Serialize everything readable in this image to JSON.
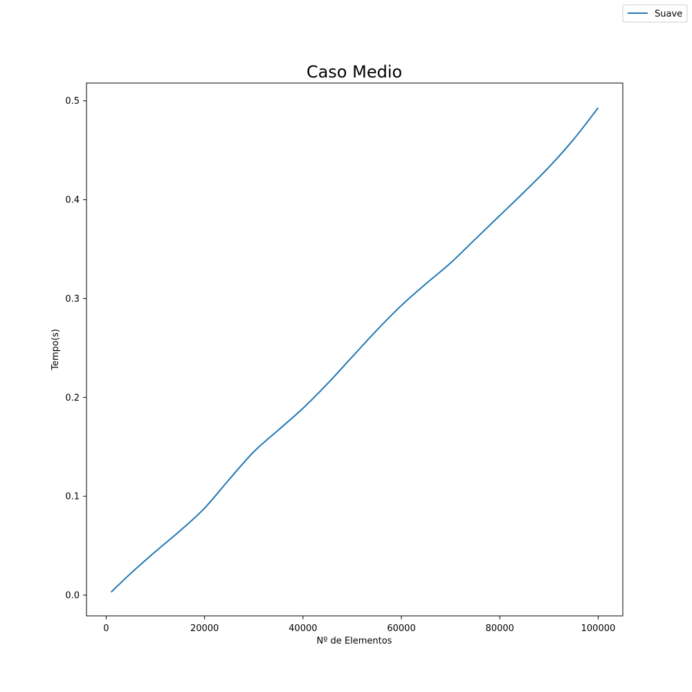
{
  "chart_data": {
    "type": "line",
    "title": "Caso Medio",
    "xlabel": "Nº de Elementos",
    "ylabel": "Tempo(s)",
    "xlim": [
      -4000,
      105000
    ],
    "ylim": [
      -0.021,
      0.518
    ],
    "x_ticks": [
      0,
      20000,
      40000,
      60000,
      80000,
      100000
    ],
    "x_tick_labels": [
      "0",
      "20000",
      "40000",
      "60000",
      "80000",
      "100000"
    ],
    "y_ticks": [
      0.0,
      0.1,
      0.2,
      0.3,
      0.4,
      0.5
    ],
    "y_tick_labels": [
      "0.0",
      "0.1",
      "0.2",
      "0.3",
      "0.4",
      "0.5"
    ],
    "grid": false,
    "legend_position": "top-right",
    "series": [
      {
        "name": "Suave",
        "color": "#1f77b4",
        "x": [
          1000,
          5000,
          10000,
          15000,
          20000,
          25000,
          30000,
          35000,
          40000,
          45000,
          50000,
          55000,
          60000,
          65000,
          70000,
          75000,
          80000,
          85000,
          90000,
          95000,
          100000
        ],
        "y": [
          0.003,
          0.022,
          0.044,
          0.065,
          0.088,
          0.117,
          0.145,
          0.167,
          0.189,
          0.214,
          0.241,
          0.268,
          0.293,
          0.315,
          0.336,
          0.36,
          0.384,
          0.408,
          0.433,
          0.461,
          0.493
        ]
      }
    ]
  }
}
